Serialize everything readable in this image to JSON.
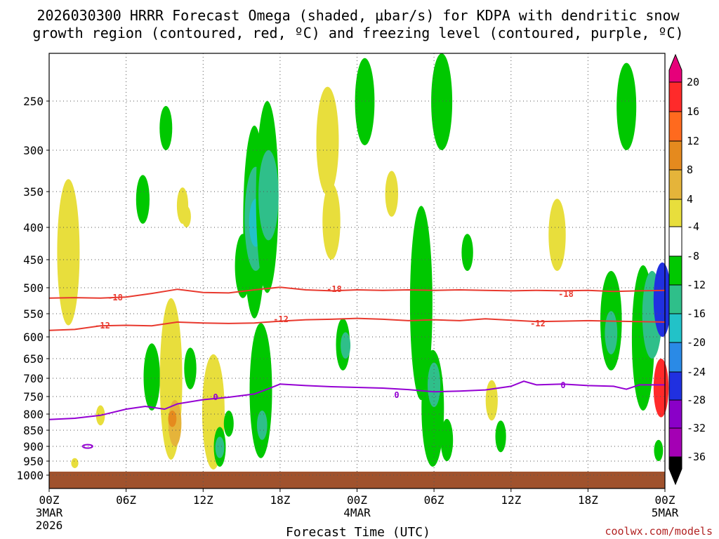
{
  "chart_data": {
    "type": "time-height cross-section (shaded omega with contours)",
    "title_line1": "2026030300 HRRR Forecast Omega (shaded, μbar/s) for KDPA with dendritic snow",
    "title_line2": "growth region (contoured, red, ºC) and freezing level (contoured, purple, ºC)",
    "xlabel": "Forecast Time (UTC)",
    "ylabel": "Pressure (hPa)",
    "credit": "coolwx.com/models",
    "x_range_hours": [
      0,
      48
    ],
    "y_range_hpa": [
      200,
      1025
    ],
    "grid": true,
    "x_ticks": [
      {
        "hour": 0,
        "label": "00Z",
        "sub1": "3MAR",
        "sub2": "2026"
      },
      {
        "hour": 6,
        "label": "06Z"
      },
      {
        "hour": 12,
        "label": "12Z"
      },
      {
        "hour": 18,
        "label": "18Z"
      },
      {
        "hour": 24,
        "label": "00Z",
        "sub1": "4MAR"
      },
      {
        "hour": 30,
        "label": "06Z"
      },
      {
        "hour": 36,
        "label": "12Z"
      },
      {
        "hour": 42,
        "label": "18Z"
      },
      {
        "hour": 48,
        "label": "00Z",
        "sub1": "5MAR"
      }
    ],
    "y_ticks": [
      250,
      300,
      350,
      400,
      450,
      500,
      550,
      600,
      650,
      700,
      750,
      800,
      850,
      900,
      950,
      1000
    ],
    "colorbar": {
      "labels": [
        "20",
        "16",
        "12",
        "8",
        "4",
        "-4",
        "-8",
        "-12",
        "-16",
        "-20",
        "-24",
        "-28",
        "-32",
        "-36"
      ],
      "levels": [
        20,
        16,
        12,
        8,
        4,
        -4,
        -8,
        -12,
        -16,
        -20,
        -24,
        -28,
        -32,
        -36
      ],
      "colors": [
        "#ff2a2a",
        "#ff6a1e",
        "#e58a1e",
        "#e5b43a",
        "#e8de3c",
        "#ffffff",
        "#00c800",
        "#2fbf8a",
        "#22c2c8",
        "#2a8ae6",
        "#2030e0",
        "#8a00c8",
        "#a400b4",
        "#9b9b9b",
        "#000000"
      ],
      "top_color": "#e6007a"
    },
    "isotherm_labels": {
      "minus18": "-18",
      "minus12": "-12",
      "zero": "0"
    },
    "contours": [
      {
        "name": "-18C dendritic top",
        "color": "#e8392e",
        "points": [
          [
            0,
            520
          ],
          [
            2,
            519
          ],
          [
            4,
            520
          ],
          [
            6,
            518
          ],
          [
            8,
            511
          ],
          [
            10,
            503
          ],
          [
            12,
            509
          ],
          [
            14,
            510
          ],
          [
            16,
            504
          ],
          [
            18,
            499
          ],
          [
            20,
            504
          ],
          [
            22,
            506
          ],
          [
            24,
            504
          ],
          [
            26,
            505
          ],
          [
            28,
            504
          ],
          [
            30,
            505
          ],
          [
            32,
            504
          ],
          [
            34,
            505
          ],
          [
            36,
            506
          ],
          [
            38,
            505
          ],
          [
            40,
            506
          ],
          [
            42,
            505
          ],
          [
            44,
            507
          ],
          [
            46,
            506
          ],
          [
            48,
            505
          ]
        ]
      },
      {
        "name": "-12C dendritic bottom",
        "color": "#e8392e",
        "points": [
          [
            0,
            586
          ],
          [
            2,
            584
          ],
          [
            4,
            576
          ],
          [
            6,
            575
          ],
          [
            8,
            576
          ],
          [
            10,
            568
          ],
          [
            12,
            570
          ],
          [
            14,
            571
          ],
          [
            16,
            570
          ],
          [
            18,
            566
          ],
          [
            20,
            563
          ],
          [
            22,
            562
          ],
          [
            24,
            560
          ],
          [
            26,
            562
          ],
          [
            28,
            565
          ],
          [
            30,
            563
          ],
          [
            32,
            565
          ],
          [
            34,
            561
          ],
          [
            36,
            564
          ],
          [
            38,
            567
          ],
          [
            40,
            566
          ],
          [
            42,
            565
          ],
          [
            44,
            566
          ],
          [
            46,
            567
          ],
          [
            48,
            568
          ]
        ]
      },
      {
        "name": "0C freezing level",
        "color": "#9400d3",
        "points": [
          [
            0,
            817
          ],
          [
            2,
            813
          ],
          [
            4,
            804
          ],
          [
            6,
            786
          ],
          [
            7.5,
            778
          ],
          [
            9,
            786
          ],
          [
            10,
            771
          ],
          [
            12,
            759
          ],
          [
            14,
            752
          ],
          [
            16,
            743
          ],
          [
            17,
            730
          ],
          [
            18,
            716
          ],
          [
            20,
            720
          ],
          [
            22,
            723
          ],
          [
            24,
            725
          ],
          [
            26,
            727
          ],
          [
            28,
            731
          ],
          [
            30,
            737
          ],
          [
            32,
            735
          ],
          [
            34,
            732
          ],
          [
            36,
            722
          ],
          [
            37,
            708
          ],
          [
            38,
            718
          ],
          [
            40,
            716
          ],
          [
            42,
            720
          ],
          [
            44,
            722
          ],
          [
            45,
            730
          ],
          [
            46,
            718
          ],
          [
            48,
            718
          ]
        ]
      }
    ],
    "omega_blobs": [
      {
        "hour": 1.5,
        "p_top": 335,
        "p_bottom": 575,
        "category": "4 to 8"
      },
      {
        "hour": 2.0,
        "p_top": 940,
        "p_bottom": 975,
        "category": "4 to 8"
      },
      {
        "hour": 4.0,
        "p_top": 775,
        "p_bottom": 835,
        "category": "4 to 8"
      },
      {
        "hour": 7.3,
        "p_top": 330,
        "p_bottom": 395,
        "category": "-4 to -8"
      },
      {
        "hour": 8.0,
        "p_top": 615,
        "p_bottom": 790,
        "category": "-4 to -8"
      },
      {
        "hour": 9.5,
        "p_top": 520,
        "p_bottom": 945,
        "category": "4 to 8"
      },
      {
        "hour": 9.8,
        "p_top": 760,
        "p_bottom": 900,
        "category": "8 to 12"
      },
      {
        "hour": 9.6,
        "p_top": 790,
        "p_bottom": 840,
        "category": "12 to 16"
      },
      {
        "hour": 9.1,
        "p_top": 255,
        "p_bottom": 300,
        "category": "-4 to -8"
      },
      {
        "hour": 10.4,
        "p_top": 345,
        "p_bottom": 395,
        "category": "4 to 8"
      },
      {
        "hour": 10.7,
        "p_top": 370,
        "p_bottom": 400,
        "category": "4 to 8"
      },
      {
        "hour": 11.0,
        "p_top": 625,
        "p_bottom": 730,
        "category": "-4 to -8"
      },
      {
        "hour": 12.8,
        "p_top": 640,
        "p_bottom": 980,
        "category": "4 to 8"
      },
      {
        "hour": 13.3,
        "p_top": 840,
        "p_bottom": 970,
        "category": "-4 to -8"
      },
      {
        "hour": 13.3,
        "p_top": 870,
        "p_bottom": 940,
        "category": "-8 to -12"
      },
      {
        "hour": 14.0,
        "p_top": 790,
        "p_bottom": 870,
        "category": "-4 to -8"
      },
      {
        "hour": 15.1,
        "p_top": 410,
        "p_bottom": 520,
        "category": "-4 to -8"
      },
      {
        "hour": 16.0,
        "p_top": 275,
        "p_bottom": 560,
        "category": "-4 to -8"
      },
      {
        "hour": 16.1,
        "p_top": 320,
        "p_bottom": 470,
        "category": "-8 to -12"
      },
      {
        "hour": 16.1,
        "p_top": 360,
        "p_bottom": 430,
        "category": "-12 to -16"
      },
      {
        "hour": 17.0,
        "p_top": 250,
        "p_bottom": 510,
        "category": "-4 to -8"
      },
      {
        "hour": 17.1,
        "p_top": 300,
        "p_bottom": 420,
        "category": "-8 to -12"
      },
      {
        "hour": 16.5,
        "p_top": 570,
        "p_bottom": 940,
        "category": "-4 to -8"
      },
      {
        "hour": 16.6,
        "p_top": 790,
        "p_bottom": 880,
        "category": "-8 to -12"
      },
      {
        "hour": 21.7,
        "p_top": 235,
        "p_bottom": 355,
        "category": "4 to 8"
      },
      {
        "hour": 22.0,
        "p_top": 340,
        "p_bottom": 450,
        "category": "4 to 8"
      },
      {
        "hour": 22.9,
        "p_top": 560,
        "p_bottom": 680,
        "category": "-4 to -8"
      },
      {
        "hour": 23.1,
        "p_top": 590,
        "p_bottom": 650,
        "category": "-8 to -12"
      },
      {
        "hour": 24.6,
        "p_top": 205,
        "p_bottom": 295,
        "category": "-4 to -8"
      },
      {
        "hour": 26.7,
        "p_top": 325,
        "p_bottom": 385,
        "category": "4 to 8"
      },
      {
        "hour": 29.0,
        "p_top": 370,
        "p_bottom": 760,
        "category": "-4 to -8"
      },
      {
        "hour": 29.9,
        "p_top": 630,
        "p_bottom": 970,
        "category": "-4 to -8"
      },
      {
        "hour": 30.0,
        "p_top": 660,
        "p_bottom": 780,
        "category": "-8 to -12"
      },
      {
        "hour": 30.6,
        "p_top": 200,
        "p_bottom": 300,
        "category": "-4 to -8"
      },
      {
        "hour": 31.0,
        "p_top": 815,
        "p_bottom": 950,
        "category": "-4 to -8"
      },
      {
        "hour": 32.6,
        "p_top": 410,
        "p_bottom": 470,
        "category": "-4 to -8"
      },
      {
        "hour": 34.5,
        "p_top": 705,
        "p_bottom": 820,
        "category": "4 to 8"
      },
      {
        "hour": 35.2,
        "p_top": 820,
        "p_bottom": 920,
        "category": "-4 to -8"
      },
      {
        "hour": 39.6,
        "p_top": 360,
        "p_bottom": 470,
        "category": "4 to 8"
      },
      {
        "hour": 43.8,
        "p_top": 470,
        "p_bottom": 680,
        "category": "-4 to -8"
      },
      {
        "hour": 43.8,
        "p_top": 545,
        "p_bottom": 640,
        "category": "-8 to -12"
      },
      {
        "hour": 45.0,
        "p_top": 210,
        "p_bottom": 300,
        "category": "-4 to -8"
      },
      {
        "hour": 46.3,
        "p_top": 460,
        "p_bottom": 790,
        "category": "-4 to -8"
      },
      {
        "hour": 47.0,
        "p_top": 470,
        "p_bottom": 650,
        "category": "-8 to -12"
      },
      {
        "hour": 47.8,
        "p_top": 455,
        "p_bottom": 600,
        "category": "-20 to -36"
      },
      {
        "hour": 47.7,
        "p_top": 650,
        "p_bottom": 810,
        "category": "8 to 20"
      },
      {
        "hour": 47.5,
        "p_top": 880,
        "p_bottom": 950,
        "category": "-4 to -8"
      }
    ]
  }
}
